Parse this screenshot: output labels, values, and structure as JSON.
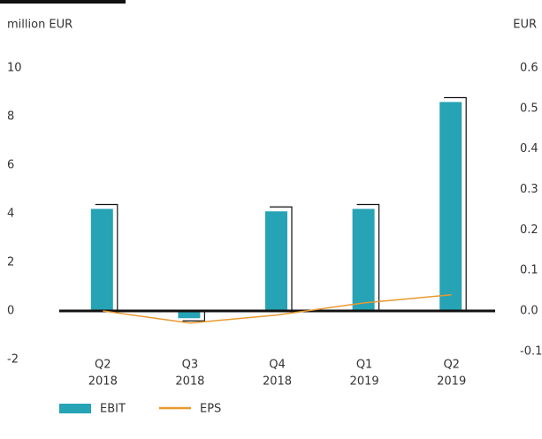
{
  "chart_data": {
    "type": "bar-line",
    "y_label": "million EUR",
    "y2_label": "EUR",
    "categories": [
      [
        "Q2",
        "2018"
      ],
      [
        "Q3",
        "2018"
      ],
      [
        "Q4",
        "2018"
      ],
      [
        "Q1",
        "2019"
      ],
      [
        "Q2",
        "2019"
      ]
    ],
    "series": [
      {
        "name": "EBIT",
        "type": "bar",
        "color": "#26a3b5",
        "values": [
          4.2,
          -0.3,
          4.1,
          4.2,
          8.6
        ]
      },
      {
        "name": "EPS",
        "type": "line",
        "color": "#e8982f",
        "axis": "y2",
        "values": [
          0.0,
          -0.03,
          -0.01,
          0.02,
          0.04
        ]
      }
    ],
    "ylim": [
      -2,
      10
    ],
    "yticks": [
      -2,
      0,
      2,
      4,
      6,
      8,
      10
    ],
    "y2lim": [
      -0.12,
      0.6
    ],
    "y2ticks": [
      {
        "value": -0.1,
        "label": "-0.1"
      },
      {
        "value": 0,
        "label": "0.0"
      },
      0.1,
      0.2,
      0.3,
      0.4,
      0.5,
      0.6
    ]
  }
}
